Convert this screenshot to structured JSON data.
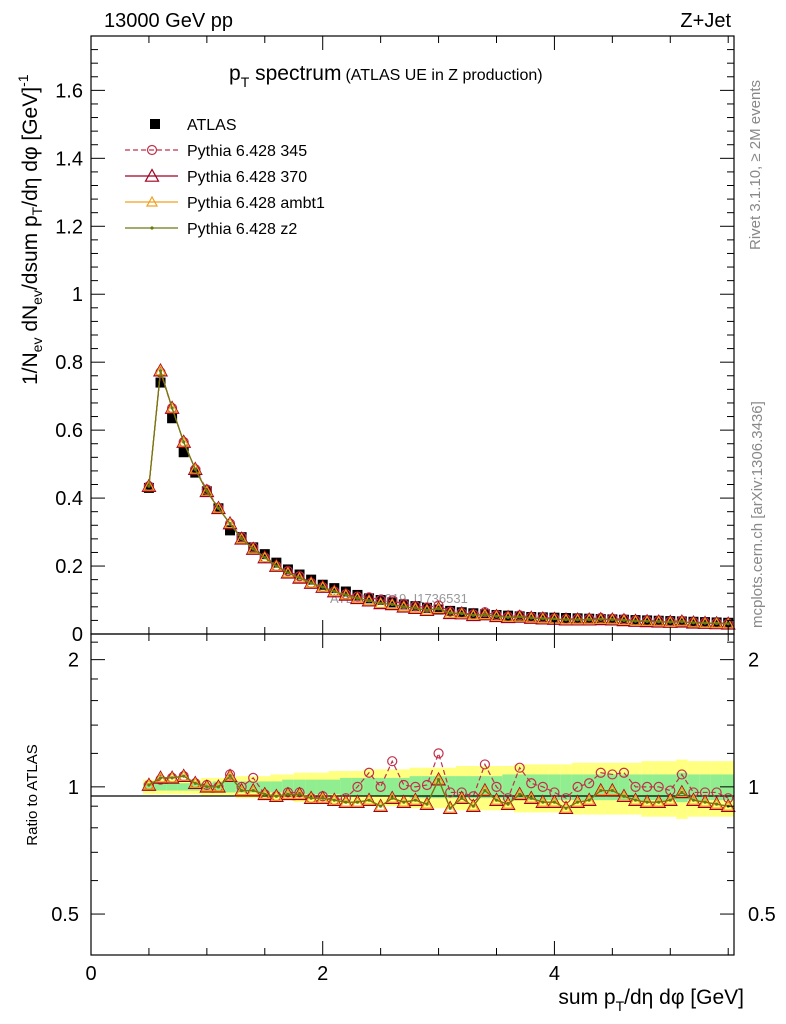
{
  "header": {
    "left": "13000 GeV pp",
    "right": "Z+Jet"
  },
  "side_labels": {
    "rivet": "Rivet 3.1.10, ≥ 2M events",
    "mcplots": "mcplots.cern.ch [arXiv:1306.3436]"
  },
  "watermark": "ATLAS_2019_I1736531",
  "colors": {
    "data": "#000000",
    "p345": "#c0304a",
    "p370": "#a00020",
    "ambt1": "#f0a020",
    "z2": "#6b7a10",
    "band_inner": "#90ee90",
    "band_outer": "#ffff80"
  },
  "chart_data": [
    {
      "type": "scatter",
      "title": "pT spectrum",
      "title_parts": {
        "p": "p",
        "sub": "T",
        "rest": " spectrum",
        "note": "(ATLAS UE in Z production)"
      },
      "ylabel": "1/Nev dNev/dsum pT/dη dφ [GeV]-1",
      "xlim": [
        0,
        5.55
      ],
      "ylim": [
        0,
        1.76
      ],
      "yticks": [
        "0",
        "0.2",
        "0.4",
        "0.6",
        "0.8",
        "1",
        "1.2",
        "1.4",
        "1.6"
      ],
      "x": [
        0.5,
        0.6,
        0.7,
        0.8,
        0.9,
        1.0,
        1.1,
        1.2,
        1.3,
        1.4,
        1.5,
        1.6,
        1.7,
        1.8,
        1.9,
        2.0,
        2.1,
        2.2,
        2.3,
        2.4,
        2.5,
        2.6,
        2.7,
        2.8,
        2.9,
        3.0,
        3.1,
        3.2,
        3.3,
        3.4,
        3.5,
        3.6,
        3.7,
        3.8,
        3.9,
        4.0,
        4.1,
        4.2,
        4.3,
        4.4,
        4.5,
        4.6,
        4.7,
        4.8,
        4.9,
        5.0,
        5.1,
        5.2,
        5.3,
        5.4,
        5.5
      ],
      "data": [
        0.43,
        0.74,
        0.635,
        0.535,
        0.475,
        0.42,
        0.37,
        0.305,
        0.285,
        0.255,
        0.235,
        0.21,
        0.19,
        0.175,
        0.16,
        0.145,
        0.135,
        0.125,
        0.115,
        0.105,
        0.1,
        0.093,
        0.087,
        0.082,
        0.077,
        0.072,
        0.068,
        0.064,
        0.061,
        0.058,
        0.056,
        0.054,
        0.052,
        0.05,
        0.049,
        0.048,
        0.047,
        0.046,
        0.045,
        0.044,
        0.043,
        0.042,
        0.041,
        0.04,
        0.039,
        0.038,
        0.037,
        0.036,
        0.035,
        0.034,
        0.033
      ],
      "series": [
        {
          "name": "Pythia 6.428 345",
          "marker": "open-circle",
          "style": "dashed",
          "values": [
            0.435,
            0.77,
            0.665,
            0.565,
            0.485,
            0.425,
            0.37,
            0.325,
            0.285,
            0.255,
            0.225,
            0.2,
            0.185,
            0.17,
            0.15,
            0.138,
            0.125,
            0.117,
            0.11,
            0.108,
            0.1,
            0.099,
            0.088,
            0.082,
            0.078,
            0.084,
            0.066,
            0.062,
            0.058,
            0.064,
            0.056,
            0.051,
            0.055,
            0.05,
            0.049,
            0.046,
            0.044,
            0.045,
            0.045,
            0.047,
            0.045,
            0.044,
            0.04,
            0.039,
            0.039,
            0.037,
            0.039,
            0.035,
            0.034,
            0.033,
            0.031
          ]
        },
        {
          "name": "Pythia 6.428 370",
          "marker": "open-triangle",
          "style": "solid",
          "values": [
            0.435,
            0.775,
            0.665,
            0.565,
            0.485,
            0.42,
            0.37,
            0.325,
            0.28,
            0.25,
            0.225,
            0.2,
            0.18,
            0.165,
            0.15,
            0.138,
            0.125,
            0.115,
            0.105,
            0.098,
            0.09,
            0.087,
            0.08,
            0.076,
            0.07,
            0.075,
            0.061,
            0.06,
            0.055,
            0.057,
            0.052,
            0.049,
            0.05,
            0.047,
            0.045,
            0.044,
            0.042,
            0.042,
            0.042,
            0.043,
            0.042,
            0.04,
            0.038,
            0.037,
            0.036,
            0.035,
            0.036,
            0.033,
            0.032,
            0.031,
            0.03
          ]
        },
        {
          "name": "Pythia 6.428 ambt1",
          "marker": "open-triangle",
          "style": "solid",
          "values": [
            0.435,
            0.775,
            0.665,
            0.565,
            0.485,
            0.42,
            0.37,
            0.325,
            0.28,
            0.25,
            0.225,
            0.2,
            0.18,
            0.165,
            0.15,
            0.138,
            0.125,
            0.115,
            0.105,
            0.098,
            0.09,
            0.087,
            0.08,
            0.076,
            0.07,
            0.075,
            0.061,
            0.06,
            0.055,
            0.057,
            0.052,
            0.049,
            0.05,
            0.047,
            0.045,
            0.044,
            0.042,
            0.042,
            0.042,
            0.043,
            0.042,
            0.04,
            0.038,
            0.037,
            0.036,
            0.035,
            0.036,
            0.033,
            0.032,
            0.031,
            0.03
          ]
        },
        {
          "name": "Pythia 6.428 z2",
          "marker": "dot",
          "style": "solid",
          "values": [
            0.435,
            0.775,
            0.665,
            0.565,
            0.485,
            0.42,
            0.37,
            0.325,
            0.28,
            0.25,
            0.225,
            0.2,
            0.18,
            0.165,
            0.15,
            0.138,
            0.125,
            0.115,
            0.105,
            0.098,
            0.09,
            0.087,
            0.08,
            0.076,
            0.07,
            0.075,
            0.061,
            0.06,
            0.055,
            0.057,
            0.052,
            0.049,
            0.05,
            0.047,
            0.045,
            0.044,
            0.042,
            0.042,
            0.042,
            0.043,
            0.042,
            0.04,
            0.038,
            0.037,
            0.036,
            0.035,
            0.036,
            0.033,
            0.032,
            0.031,
            0.03
          ]
        }
      ],
      "legend": [
        "ATLAS",
        "Pythia 6.428 345",
        "Pythia 6.428 370",
        "Pythia 6.428 ambt1",
        "Pythia 6.428 z2"
      ]
    },
    {
      "type": "line",
      "title": "Ratio to ATLAS",
      "ylabel": "Ratio to ATLAS",
      "xlabel": "sum pT/dη dφ [GeV]",
      "xlim": [
        0,
        5.55
      ],
      "ylim": [
        0.4,
        2.3
      ],
      "yscale": "log",
      "yticks": [
        0.5,
        1,
        2
      ],
      "yticklabels": [
        "0.5",
        "1",
        "2"
      ],
      "xticks": [
        0,
        2,
        4
      ],
      "xticklabels": [
        "0",
        "2",
        "4"
      ],
      "band_inner_halfwidth": [
        0.02,
        0.02,
        0.02,
        0.02,
        0.02,
        0.02,
        0.03,
        0.03,
        0.03,
        0.03,
        0.03,
        0.03,
        0.04,
        0.04,
        0.04,
        0.04,
        0.04,
        0.05,
        0.05,
        0.05,
        0.05,
        0.05,
        0.05,
        0.06,
        0.06,
        0.06,
        0.06,
        0.06,
        0.06,
        0.06,
        0.06,
        0.07,
        0.07,
        0.07,
        0.07,
        0.07,
        0.07,
        0.07,
        0.07,
        0.07,
        0.07,
        0.07,
        0.07,
        0.07,
        0.07,
        0.07,
        0.08,
        0.07,
        0.07,
        0.07,
        0.07
      ],
      "band_outer_halfwidth": [
        0.04,
        0.04,
        0.04,
        0.04,
        0.04,
        0.05,
        0.05,
        0.05,
        0.06,
        0.06,
        0.06,
        0.07,
        0.07,
        0.08,
        0.08,
        0.08,
        0.09,
        0.09,
        0.09,
        0.1,
        0.1,
        0.1,
        0.1,
        0.11,
        0.11,
        0.11,
        0.11,
        0.12,
        0.12,
        0.12,
        0.12,
        0.12,
        0.13,
        0.13,
        0.13,
        0.13,
        0.13,
        0.14,
        0.14,
        0.14,
        0.14,
        0.14,
        0.14,
        0.15,
        0.15,
        0.15,
        0.16,
        0.15,
        0.15,
        0.15,
        0.15
      ],
      "ratio_345": [
        1.01,
        1.04,
        1.05,
        1.06,
        1.02,
        1.01,
        1.0,
        1.07,
        1.0,
        1.05,
        0.96,
        0.95,
        0.97,
        0.97,
        0.94,
        0.95,
        0.93,
        0.94,
        1.0,
        1.08,
        1.0,
        1.15,
        1.01,
        1.0,
        1.01,
        1.2,
        0.97,
        0.97,
        0.95,
        1.13,
        1.0,
        0.94,
        1.11,
        1.02,
        1.0,
        0.97,
        0.94,
        1.0,
        1.02,
        1.08,
        1.07,
        1.08,
        1.0,
        1.0,
        1.0,
        0.98,
        1.07,
        0.97,
        0.97,
        0.97,
        0.94
      ],
      "ratio_370": [
        1.01,
        1.05,
        1.05,
        1.06,
        1.02,
        1.0,
        1.0,
        1.06,
        0.98,
        0.98,
        0.96,
        0.95,
        0.96,
        0.96,
        0.94,
        0.94,
        0.93,
        0.92,
        0.92,
        0.93,
        0.9,
        0.94,
        0.92,
        0.93,
        0.91,
        1.04,
        0.89,
        0.94,
        0.9,
        0.98,
        0.93,
        0.91,
        0.96,
        0.94,
        0.92,
        0.92,
        0.89,
        0.92,
        0.93,
        0.98,
        0.98,
        0.95,
        0.93,
        0.92,
        0.92,
        0.93,
        0.97,
        0.93,
        0.92,
        0.91,
        0.9
      ],
      "ratio_ambt1": [
        1.01,
        1.05,
        1.05,
        1.06,
        1.02,
        1.0,
        1.0,
        1.06,
        0.98,
        0.98,
        0.96,
        0.95,
        0.96,
        0.96,
        0.94,
        0.94,
        0.93,
        0.92,
        0.92,
        0.93,
        0.9,
        0.94,
        0.92,
        0.93,
        0.91,
        1.04,
        0.89,
        0.94,
        0.9,
        0.98,
        0.93,
        0.91,
        0.96,
        0.94,
        0.92,
        0.92,
        0.89,
        0.92,
        0.93,
        0.98,
        0.98,
        0.95,
        0.93,
        0.92,
        0.92,
        0.93,
        0.97,
        0.93,
        0.92,
        0.91,
        0.9
      ],
      "ratio_z2": [
        1.01,
        1.05,
        1.05,
        1.06,
        1.02,
        1.0,
        1.0,
        1.06,
        0.98,
        0.98,
        0.96,
        0.95,
        0.96,
        0.96,
        0.94,
        0.94,
        0.93,
        0.92,
        0.92,
        0.93,
        0.9,
        0.94,
        0.92,
        0.93,
        0.91,
        1.04,
        0.89,
        0.94,
        0.9,
        0.98,
        0.93,
        0.91,
        0.96,
        0.94,
        0.92,
        0.92,
        0.89,
        0.92,
        0.93,
        0.98,
        0.98,
        0.95,
        0.93,
        0.92,
        0.92,
        0.93,
        0.97,
        0.93,
        0.92,
        0.91,
        0.9
      ]
    }
  ],
  "axis_text": {
    "x_title_main": "sum p",
    "x_title_sub": "T",
    "x_title_rest": "/dη dφ [GeV]",
    "y_title_p1": "1/N",
    "y_title_s1": "ev",
    "y_title_p2": " dN",
    "y_title_s2": "ev",
    "y_title_p3": "/dsum p",
    "y_title_s3": "T",
    "y_title_p4": "/dη dφ  [GeV]",
    "y_title_sup": "-1"
  }
}
